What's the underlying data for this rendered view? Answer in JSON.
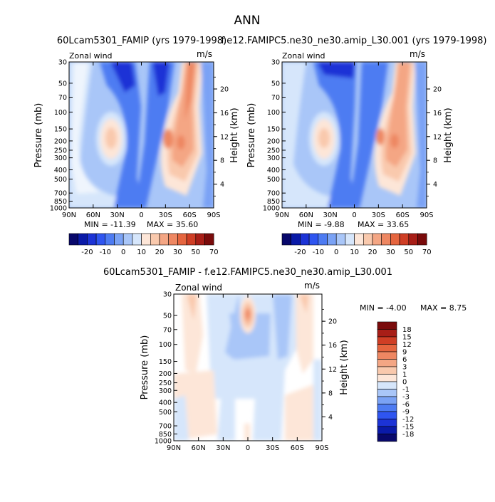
{
  "figure": {
    "title": "ANN"
  },
  "colors": {
    "blues": [
      "#08086b",
      "#0a1aa8",
      "#1c33d6",
      "#2f55f0",
      "#4d7bf2",
      "#7aa2f5",
      "#a9c6f8",
      "#d6e6fb"
    ],
    "reds": [
      "#fde6d8",
      "#f9c9ad",
      "#f4a684",
      "#ee8762",
      "#e5653f",
      "#cf3e25",
      "#a81e17",
      "#7a0b0b"
    ]
  },
  "chart_data": [
    {
      "type": "heatmap",
      "panel": "left",
      "title": "60Lcam5301_FAMIP (yrs 1979-1998)",
      "variable_label": "Zonal wind",
      "units": "m/s",
      "ylabel": "Pressure (mb)",
      "ylabel_right": "Height (km)",
      "x_ticks": [
        "90N",
        "60N",
        "30N",
        "0",
        "30S",
        "60S",
        "90S"
      ],
      "y_ticks": [
        "30",
        "50",
        "70",
        "100",
        "150",
        "200",
        "250",
        "300",
        "400",
        "500",
        "700",
        "850",
        "1000"
      ],
      "height_ticks": [
        "20",
        "16",
        "12",
        "8",
        "4"
      ],
      "min_label": "MIN = -11.39",
      "max_label": "MAX = 35.60",
      "min": -11.39,
      "max": 35.6,
      "colorbar_labels": [
        "-20",
        "-10",
        "0",
        "10",
        "20",
        "30",
        "50",
        "70"
      ]
    },
    {
      "type": "heatmap",
      "panel": "right",
      "title": "f.e12.FAMIPC5.ne30_ne30.amip_L30.001 (yrs 1979-1998)",
      "variable_label": "Zonal wind",
      "units": "m/s",
      "ylabel": "Pressure (mb)",
      "ylabel_right": "Height (km)",
      "x_ticks": [
        "90N",
        "60N",
        "30N",
        "0",
        "30S",
        "60S",
        "90S"
      ],
      "y_ticks": [
        "30",
        "50",
        "70",
        "100",
        "150",
        "200",
        "250",
        "300",
        "400",
        "500",
        "700",
        "850",
        "1000"
      ],
      "height_ticks": [
        "20",
        "16",
        "12",
        "8",
        "4"
      ],
      "min_label": "MIN = -9.88",
      "max_label": "MAX = 33.65",
      "min": -9.88,
      "max": 33.65,
      "colorbar_labels": [
        "-20",
        "-10",
        "0",
        "10",
        "20",
        "30",
        "50",
        "70"
      ]
    },
    {
      "type": "heatmap",
      "panel": "difference",
      "title": "60Lcam5301_FAMIP - f.e12.FAMIPC5.ne30_ne30.amip_L30.001",
      "variable_label": "Zonal wind",
      "units": "m/s",
      "ylabel": "Pressure (mb)",
      "ylabel_right": "Height (km)",
      "x_ticks": [
        "90N",
        "60N",
        "30N",
        "0",
        "30S",
        "60S",
        "90S"
      ],
      "y_ticks": [
        "30",
        "50",
        "70",
        "100",
        "150",
        "200",
        "250",
        "300",
        "400",
        "500",
        "700",
        "850",
        "1000"
      ],
      "height_ticks": [
        "20",
        "16",
        "12",
        "8",
        "4"
      ],
      "min_label": "MIN = -4.00",
      "max_label": "MAX = 8.75",
      "min": -4.0,
      "max": 8.75,
      "colorbar_labels": [
        "18",
        "15",
        "12",
        "9",
        "6",
        "3",
        "1",
        "0",
        "-1",
        "-3",
        "-6",
        "-9",
        "-12",
        "-15",
        "-18"
      ]
    }
  ]
}
